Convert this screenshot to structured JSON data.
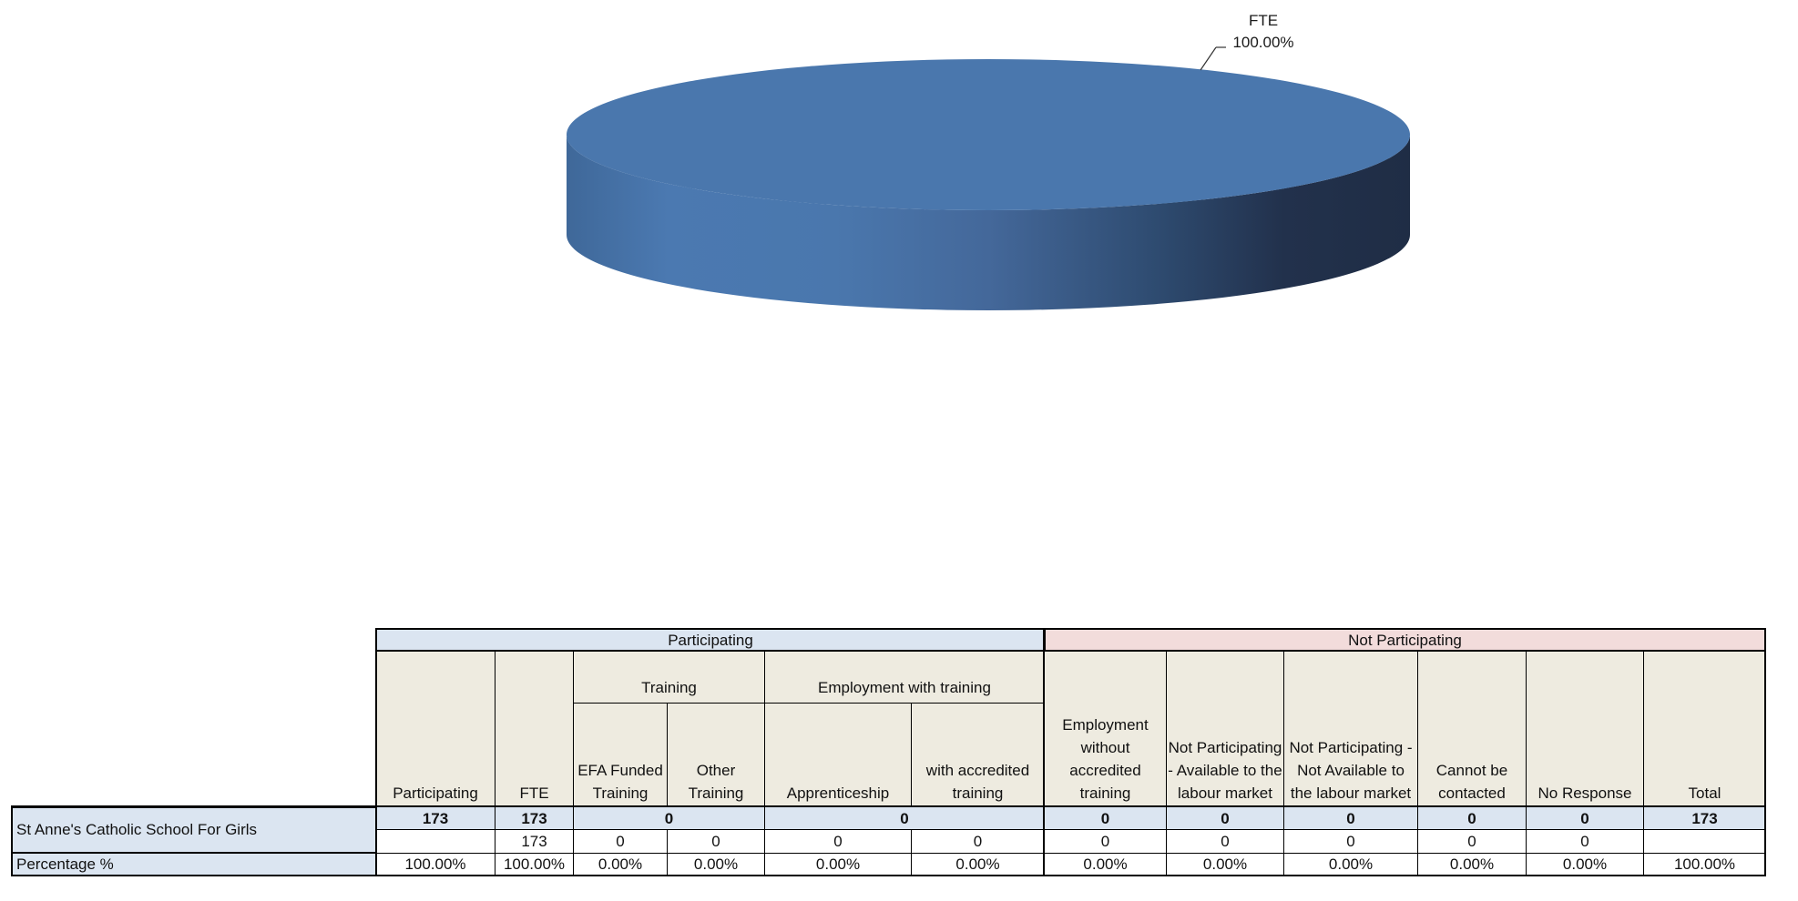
{
  "chart_data": {
    "type": "pie",
    "title": "",
    "slices": [
      {
        "label": "FTE",
        "value": 100.0,
        "value_text": "100.00%",
        "color": "#4a77ad"
      }
    ]
  },
  "table": {
    "band_participating": "Participating",
    "band_not_participating": "Not Participating",
    "group_training": "Training",
    "group_employment": "Employment with training",
    "headers": {
      "participating": "Participating",
      "fte": "FTE",
      "efa_funded": "EFA Funded Training",
      "other_training": "Other Training",
      "apprenticeship": "Apprenticeship",
      "with_accredited": "with accredited training",
      "employment_without": "Employment without accredited training",
      "np_available": "Not Participating - Available to the labour market",
      "np_not_available": "Not Participating - Not Available to the labour market",
      "cannot_contact": "Cannot be contacted",
      "no_response": "No Response",
      "total": "Total"
    },
    "school_name": "St Anne's Catholic School For Girls",
    "percentage_label": "Percentage %",
    "totals_row": {
      "participating": "173",
      "fte": "173",
      "training": "0",
      "employment": "0",
      "employment_without": "0",
      "np_available": "0",
      "np_not_available": "0",
      "cannot_contact": "0",
      "no_response": "0",
      "total": "173"
    },
    "detail_row": {
      "participating": "",
      "fte": "173",
      "efa_funded": "0",
      "other_training": "0",
      "apprenticeship": "0",
      "with_accredited": "0",
      "employment_without": "0",
      "np_available": "0",
      "np_not_available": "0",
      "cannot_contact": "0",
      "no_response": "0",
      "total": ""
    },
    "percent_row": {
      "participating": "100.00%",
      "fte": "100.00%",
      "efa_funded": "0.00%",
      "other_training": "0.00%",
      "apprenticeship": "0.00%",
      "with_accredited": "0.00%",
      "employment_without": "0.00%",
      "np_available": "0.00%",
      "np_not_available": "0.00%",
      "cannot_contact": "0.00%",
      "no_response": "0.00%",
      "total": "100.00%"
    }
  }
}
